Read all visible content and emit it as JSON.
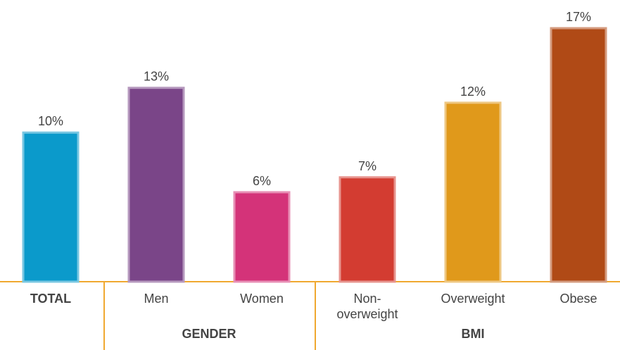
{
  "chart_data": {
    "type": "bar",
    "categories": [
      "TOTAL",
      "Men",
      "Women",
      "Non-overweight",
      "Overweight",
      "Obese"
    ],
    "values": [
      10,
      13,
      6,
      7,
      12,
      17
    ],
    "value_labels": [
      "10%",
      "13%",
      "6%",
      "7%",
      "12%",
      "17%"
    ],
    "colors": [
      "#0b9acb",
      "#7a4588",
      "#d43379",
      "#d33c31",
      "#e0991b",
      "#b04a16"
    ],
    "groups": [
      "GENDER",
      "BMI"
    ],
    "ylim": [
      0,
      17
    ]
  }
}
